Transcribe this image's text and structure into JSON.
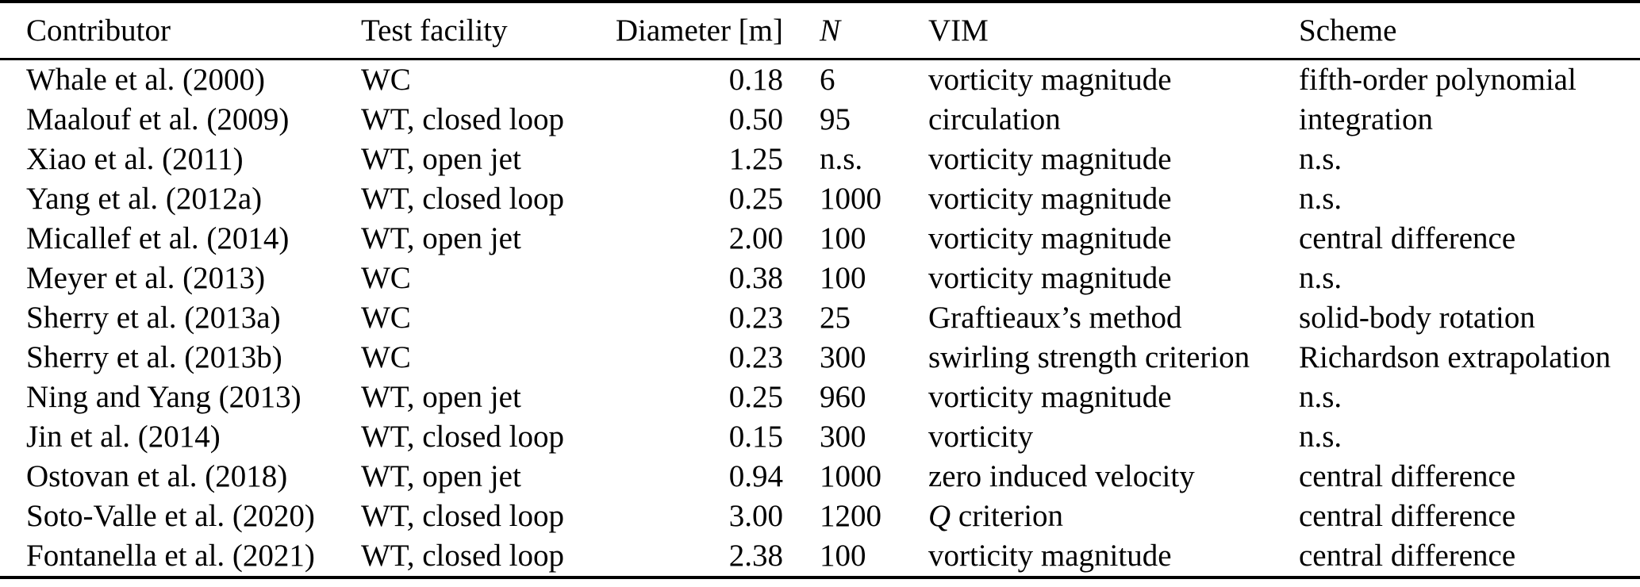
{
  "table": {
    "text_color": "#000000",
    "background_color": "#ffffff",
    "rule_color": "#000000",
    "columns": [
      {
        "key": "contributor",
        "label": "Contributor",
        "italic": false
      },
      {
        "key": "test_facility",
        "label": "Test facility",
        "italic": false
      },
      {
        "key": "diameter_m",
        "label": "Diameter [m]",
        "italic": false
      },
      {
        "key": "n",
        "label": "N",
        "italic": true
      },
      {
        "key": "vim",
        "label": "VIM",
        "italic": false
      },
      {
        "key": "scheme",
        "label": "Scheme",
        "italic": false
      }
    ],
    "rows": [
      {
        "contributor": "Whale et al. (2000)",
        "test_facility": "WC",
        "diameter_m": "0.18",
        "n": "6",
        "vim": "vorticity magnitude",
        "scheme": "fifth-order polynomial"
      },
      {
        "contributor": "Maalouf et al. (2009)",
        "test_facility": "WT, closed loop",
        "diameter_m": "0.50",
        "n": "95",
        "vim": "circulation",
        "scheme": "integration"
      },
      {
        "contributor": "Xiao et al. (2011)",
        "test_facility": "WT, open jet",
        "diameter_m": "1.25",
        "n": "n.s.",
        "vim": "vorticity magnitude",
        "scheme": "n.s."
      },
      {
        "contributor": "Yang et al. (2012a)",
        "test_facility": "WT, closed loop",
        "diameter_m": "0.25",
        "n": "1000",
        "vim": "vorticity magnitude",
        "scheme": "n.s."
      },
      {
        "contributor": "Micallef et al. (2014)",
        "test_facility": "WT, open jet",
        "diameter_m": "2.00",
        "n": "100",
        "vim": "vorticity magnitude",
        "scheme": "central difference"
      },
      {
        "contributor": "Meyer et al. (2013)",
        "test_facility": "WC",
        "diameter_m": "0.38",
        "n": "100",
        "vim": "vorticity magnitude",
        "scheme": "n.s."
      },
      {
        "contributor": "Sherry et al. (2013a)",
        "test_facility": "WC",
        "diameter_m": "0.23",
        "n": "25",
        "vim": "Graftieaux’s method",
        "scheme": "solid-body rotation"
      },
      {
        "contributor": "Sherry et al. (2013b)",
        "test_facility": "WC",
        "diameter_m": "0.23",
        "n": "300",
        "vim": "swirling strength criterion",
        "scheme": "Richardson extrapolation"
      },
      {
        "contributor": "Ning and Yang (2013)",
        "test_facility": "WT, open jet",
        "diameter_m": "0.25",
        "n": "960",
        "vim": "vorticity magnitude",
        "scheme": "n.s."
      },
      {
        "contributor": "Jin et al. (2014)",
        "test_facility": "WT, closed loop",
        "diameter_m": "0.15",
        "n": "300",
        "vim": "vorticity",
        "scheme": "n.s."
      },
      {
        "contributor": "Ostovan et al. (2018)",
        "test_facility": "WT, open jet",
        "diameter_m": "0.94",
        "n": "1000",
        "vim": "zero induced velocity",
        "scheme": "central difference"
      },
      {
        "contributor": "Soto-Valle et al. (2020)",
        "test_facility": "WT, closed loop",
        "diameter_m": "3.00",
        "n": "1200",
        "vim": {
          "italic": "Q",
          "rest": " criterion"
        },
        "scheme": "central difference"
      },
      {
        "contributor": "Fontanella et al. (2021)",
        "test_facility": "WT, closed loop",
        "diameter_m": "2.38",
        "n": "100",
        "vim": "vorticity magnitude",
        "scheme": "central difference"
      }
    ]
  }
}
